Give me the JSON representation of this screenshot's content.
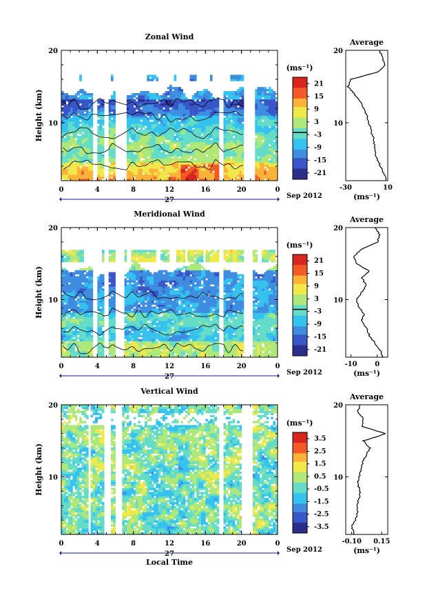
{
  "figure": {
    "time_axis_label": "Local Time",
    "date_label": "Sep 2012",
    "day_label": "27",
    "colors": {
      "colormap": [
        "#2b2f8a",
        "#3856c7",
        "#3f8de0",
        "#36c2ef",
        "#64dcc8",
        "#aee87a",
        "#f1e94a",
        "#fbb238",
        "#f45a26",
        "#d7261e"
      ],
      "line": "#000000",
      "background": "#ffffff",
      "ticks": "#0a1a8c"
    }
  },
  "chart_data": [
    {
      "type": "heatmap",
      "panel": "zonal",
      "title": "Zonal Wind",
      "ylabel": "Height (km)",
      "xlabel": "",
      "x_ticks": [
        "0",
        "4",
        "8",
        "12",
        "16",
        "20",
        "0"
      ],
      "y_ticks": [
        "10",
        "20"
      ],
      "ylim": [
        2,
        20
      ],
      "xlim": [
        0,
        24
      ],
      "unit_label": "(ms⁻¹)",
      "colorbar_ticks": [
        "21",
        "15",
        "9",
        "3",
        "-3",
        "-9",
        "-15",
        "-21"
      ],
      "colorbar_range": [
        -24,
        24
      ],
      "missing_time_bands": [
        [
          3.6,
          3.9
        ],
        [
          4.8,
          5.2
        ],
        [
          6.0,
          7.1
        ],
        [
          17.6,
          17.9
        ],
        [
          20.2,
          21.4
        ]
      ],
      "average_profile": {
        "title": "Average",
        "xlabel": "(ms⁻¹)",
        "x_ticks": [
          "-30",
          "10"
        ],
        "xlim": [
          -30,
          10
        ],
        "y_ticks": [
          "10",
          "20"
        ],
        "height_km": [
          2,
          3,
          4,
          5,
          6,
          7,
          8,
          9,
          10,
          11,
          12,
          13,
          14,
          15,
          16,
          17,
          18,
          19,
          20
        ],
        "values": [
          9,
          6,
          3,
          0,
          -2,
          -3,
          -4,
          -6,
          -8,
          -10,
          -13,
          -16,
          -22,
          -28,
          -25,
          1,
          7,
          5,
          2
        ]
      }
    },
    {
      "type": "heatmap",
      "panel": "meridional",
      "title": "Meridional Wind",
      "ylabel": "Height (km)",
      "xlabel": "",
      "x_ticks": [
        "0",
        "4",
        "8",
        "12",
        "16",
        "20",
        "0"
      ],
      "y_ticks": [
        "10",
        "20"
      ],
      "ylim": [
        2,
        20
      ],
      "xlim": [
        0,
        24
      ],
      "unit_label": "(ms⁻¹)",
      "colorbar_ticks": [
        "21",
        "15",
        "9",
        "3",
        "-3",
        "-9",
        "-15",
        "-21"
      ],
      "colorbar_range": [
        -24,
        24
      ],
      "missing_time_bands": [
        [
          3.6,
          3.9
        ],
        [
          4.8,
          5.2
        ],
        [
          6.0,
          6.8
        ],
        [
          17.6,
          17.9
        ],
        [
          20.2,
          21.2
        ]
      ],
      "average_profile": {
        "title": "Average",
        "xlabel": "(ms⁻¹)",
        "x_ticks": [
          "-10",
          "0"
        ],
        "xlim": [
          -12,
          4
        ],
        "y_ticks": [
          "10",
          "20"
        ],
        "height_km": [
          2,
          3,
          4,
          5,
          6,
          7,
          8,
          9,
          10,
          11,
          12,
          13,
          14,
          15,
          16,
          17,
          18,
          19,
          20
        ],
        "values": [
          2,
          1,
          -1,
          -3,
          -4,
          -6,
          -5,
          -7,
          -8,
          -6,
          -4,
          -6,
          -3,
          -8,
          -9,
          -6,
          0,
          1,
          -1
        ]
      }
    },
    {
      "type": "heatmap",
      "panel": "vertical",
      "title": "Vertical Wind",
      "ylabel": "Height (km)",
      "xlabel": "Local Time",
      "x_ticks": [
        "0",
        "4",
        "8",
        "12",
        "16",
        "20",
        "0"
      ],
      "y_ticks": [
        "10",
        "20"
      ],
      "ylim": [
        2,
        20
      ],
      "xlim": [
        0,
        24
      ],
      "unit_label": "(ms⁻¹)",
      "colorbar_ticks": [
        "3.5",
        "2.5",
        "1.5",
        "0.5",
        "-0.5",
        "-1.5",
        "-2.5",
        "-3.5"
      ],
      "colorbar_range": [
        -4,
        4
      ],
      "missing_time_bands": [
        [
          2.9,
          3.2
        ],
        [
          4.8,
          5.3
        ],
        [
          6.0,
          6.6
        ],
        [
          17.6,
          17.9
        ],
        [
          20.0,
          21.2
        ]
      ],
      "average_profile": {
        "title": "Average",
        "xlabel": "(ms⁻¹)",
        "x_ticks": [
          "-0.10",
          "0.15"
        ],
        "xlim": [
          -0.15,
          0.2
        ],
        "y_ticks": [
          "10",
          "20"
        ],
        "height_km": [
          2,
          3,
          4,
          5,
          6,
          7,
          8,
          9,
          10,
          11,
          12,
          13,
          14,
          15,
          16,
          17,
          18,
          19,
          20
        ],
        "values": [
          -0.08,
          -0.1,
          -0.07,
          -0.05,
          -0.06,
          -0.04,
          -0.03,
          -0.05,
          -0.04,
          -0.02,
          -0.01,
          0.02,
          0.05,
          0.0,
          0.18,
          -0.02,
          0.0,
          -0.05,
          -0.03
        ]
      }
    }
  ]
}
